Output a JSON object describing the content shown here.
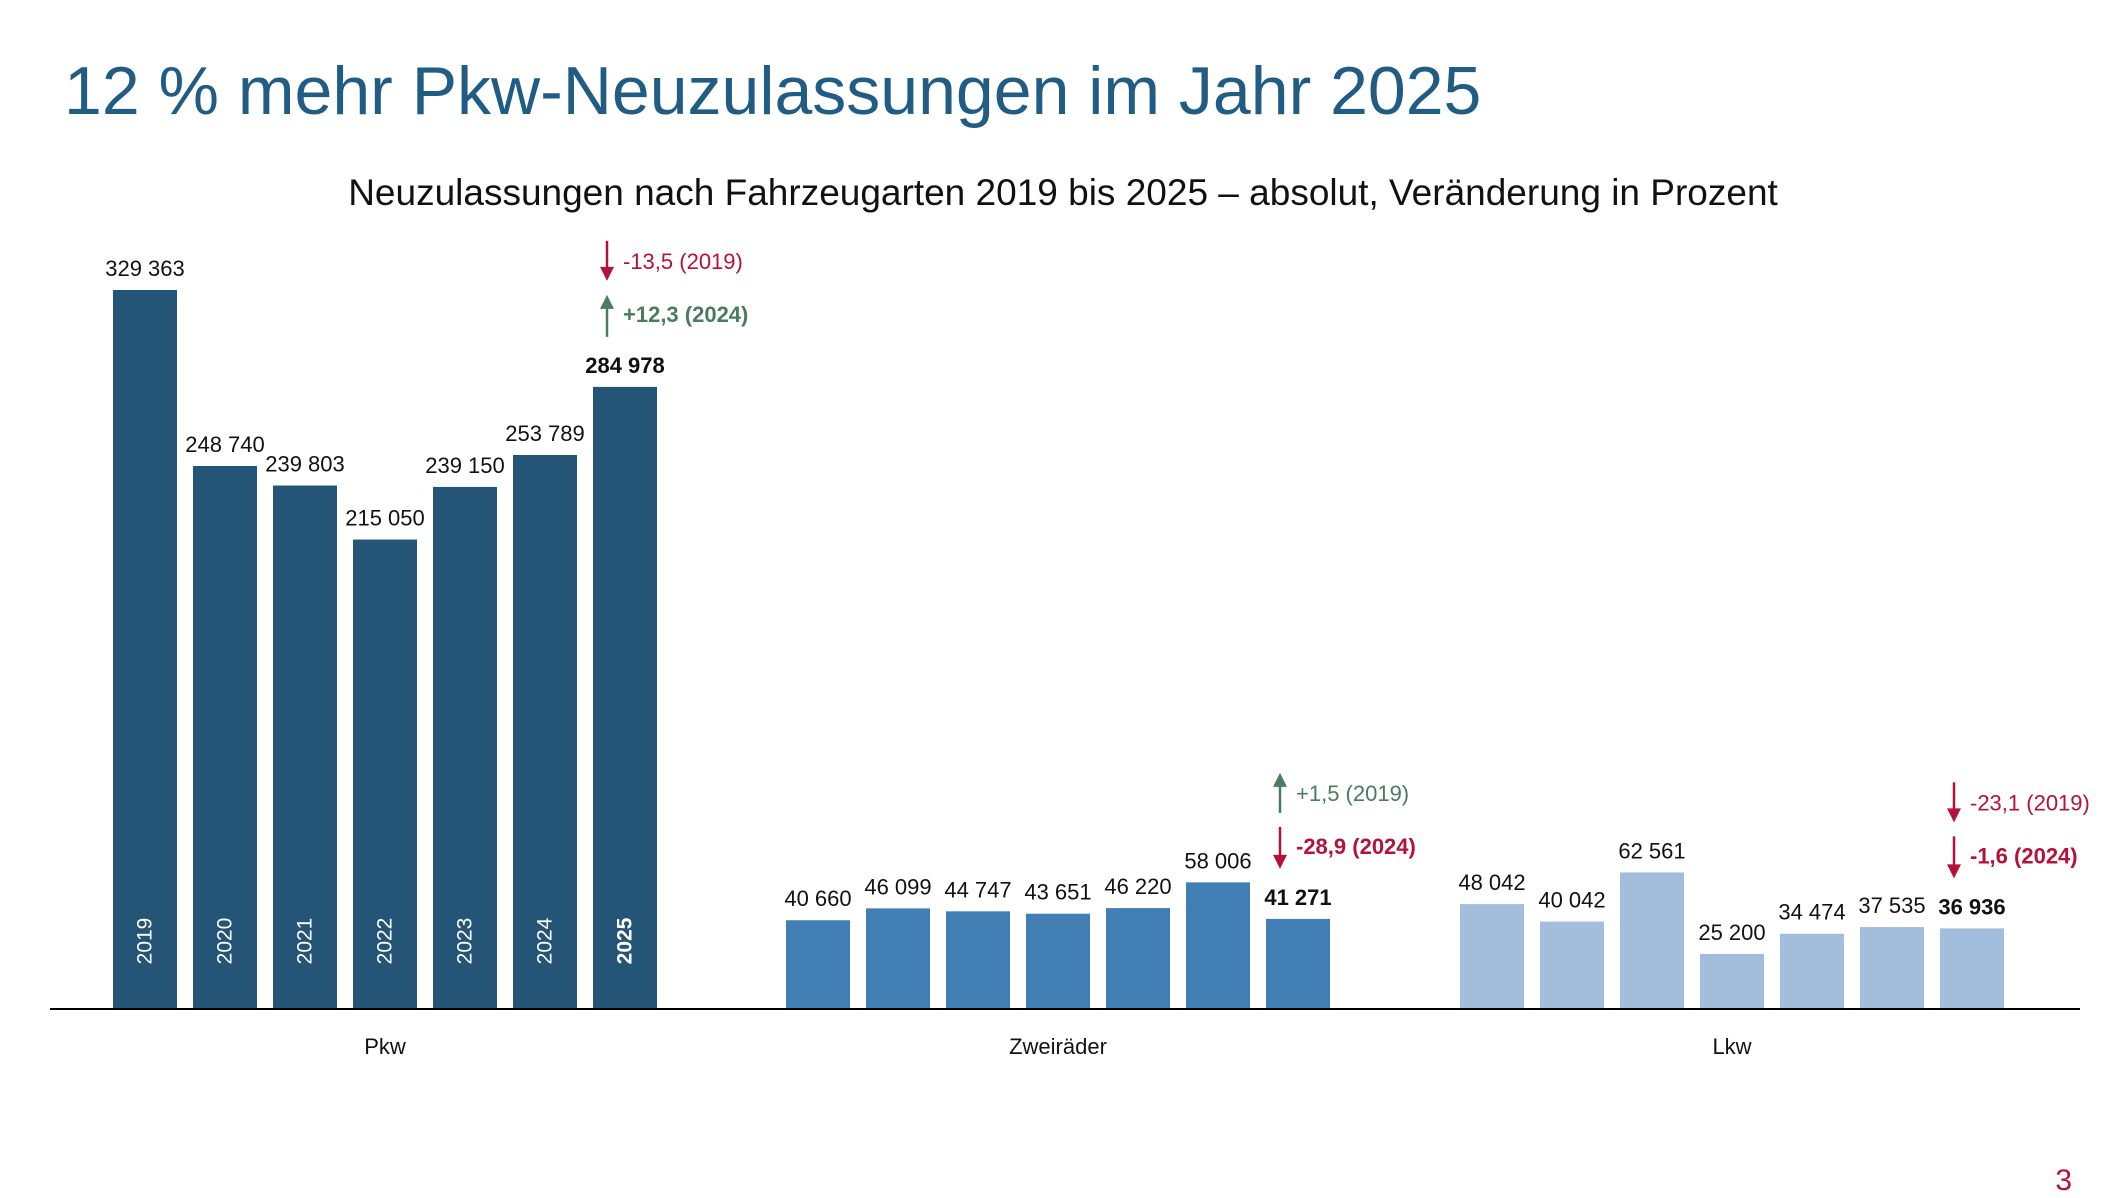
{
  "slide": {
    "title": "12 % mehr Pkw-Neuzulassungen im Jahr 2025",
    "page_number": "3"
  },
  "colors": {
    "pkw": "#245577",
    "zweiraeder": "#417EB3",
    "lkw": "#A2BEDC",
    "positive": "#4A7C5E",
    "negative": "#B5123A",
    "axis": "#000000"
  },
  "chart_data": {
    "type": "bar",
    "title": "Neuzulassungen nach Fahrzeugarten 2019 bis 2025 – absolut, Veränderung in Prozent",
    "years": [
      "2019",
      "2020",
      "2021",
      "2022",
      "2023",
      "2024",
      "2025"
    ],
    "highlight_year": "2025",
    "groups": [
      {
        "name": "Pkw",
        "values": [
          329363,
          248740,
          239803,
          215050,
          239150,
          253789,
          284978
        ],
        "labels": [
          "329 363",
          "248 740",
          "239 803",
          "215 050",
          "239 150",
          "253 789",
          "284 978"
        ],
        "changes": [
          {
            "text": "-13,5 (2019)",
            "direction": "down",
            "bold": false
          },
          {
            "text": "+12,3 (2024)",
            "direction": "up",
            "bold": true
          }
        ]
      },
      {
        "name": "Zweiräder",
        "values": [
          40660,
          46099,
          44747,
          43651,
          46220,
          58006,
          41271
        ],
        "labels": [
          "40 660",
          "46 099",
          "44 747",
          "43 651",
          "46 220",
          "58 006",
          "41 271"
        ],
        "changes": [
          {
            "text": "+1,5 (2019)",
            "direction": "up",
            "bold": false
          },
          {
            "text": "-28,9 (2024)",
            "direction": "down",
            "bold": true
          }
        ]
      },
      {
        "name": "Lkw",
        "values": [
          48042,
          40042,
          62561,
          25200,
          34474,
          37535,
          36936
        ],
        "labels": [
          "48 042",
          "40 042",
          "62 561",
          "25 200",
          "34 474",
          "37 535",
          "36 936"
        ],
        "changes": [
          {
            "text": "-23,1 (2019)",
            "direction": "down",
            "bold": false
          },
          {
            "text": "-1,6 (2024)",
            "direction": "down",
            "bold": true
          }
        ]
      }
    ],
    "ylim": [
      0,
      329363
    ]
  }
}
